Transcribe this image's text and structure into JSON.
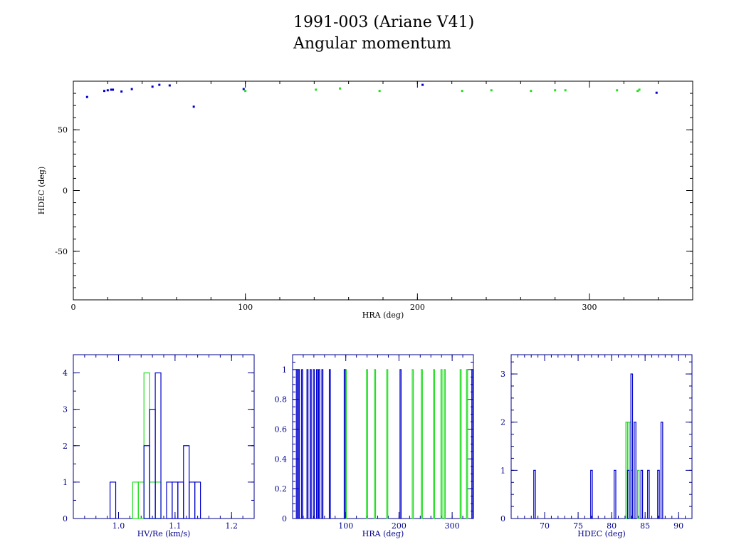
{
  "header": {
    "title": "1991-003 (Ariane V41)",
    "subtitle": "Angular momentum"
  },
  "colors": {
    "axis_top": "#000000",
    "axis_bottom": "#00008b",
    "series_blue": "#0000cc",
    "series_green": "#22dd22",
    "background": "#ffffff"
  },
  "chart_data": [
    {
      "type": "scatter",
      "xlabel": "HRA (deg)",
      "ylabel": "HDEC (deg)",
      "xlim": [
        0,
        360
      ],
      "ylim": [
        -90,
        90
      ],
      "xticks": [
        0,
        100,
        200,
        300
      ],
      "yticks": [
        -50,
        0,
        50
      ],
      "grid": false,
      "legend": "none",
      "series": [
        {
          "color": "blue",
          "points": [
            [
              8,
              77
            ],
            [
              18,
              82
            ],
            [
              20,
              82.5
            ],
            [
              22,
              83
            ],
            [
              23,
              83
            ],
            [
              28,
              81.5
            ],
            [
              34,
              83.5
            ],
            [
              46,
              85.5
            ],
            [
              50,
              87
            ],
            [
              56,
              86.5
            ],
            [
              70,
              69
            ],
            [
              99,
              83.5
            ],
            [
              203,
              87
            ],
            [
              339,
              80.5
            ]
          ]
        },
        {
          "color": "green",
          "points": [
            [
              100,
              82
            ],
            [
              141,
              83
            ],
            [
              155,
              84
            ],
            [
              178,
              82
            ],
            [
              226,
              82
            ],
            [
              243,
              82.5
            ],
            [
              266,
              82
            ],
            [
              280,
              82.5
            ],
            [
              286,
              82.5
            ],
            [
              316,
              82.5
            ],
            [
              328,
              82
            ],
            [
              329,
              83
            ]
          ]
        }
      ]
    },
    {
      "type": "histogram",
      "xlabel": "HV/Re (km/s)",
      "ylabel": "",
      "xlim": [
        0.92,
        1.24
      ],
      "ylim": [
        0,
        4.5
      ],
      "xticks": [
        "1.0",
        "1.1",
        "1.2"
      ],
      "yticks": [
        "0",
        "1",
        "2",
        "3",
        "4"
      ],
      "bin_width": 0.01,
      "series": [
        {
          "color": "blue",
          "bins": [
            [
              0.99,
              1
            ],
            [
              1.05,
              2
            ],
            [
              1.06,
              3
            ],
            [
              1.07,
              4
            ],
            [
              1.09,
              1
            ],
            [
              1.1,
              1
            ],
            [
              1.11,
              1
            ],
            [
              1.12,
              2
            ],
            [
              1.13,
              1
            ],
            [
              1.14,
              1
            ]
          ]
        },
        {
          "color": "green",
          "bins": [
            [
              1.03,
              1
            ],
            [
              1.04,
              1
            ],
            [
              1.05,
              4
            ],
            [
              1.06,
              1
            ],
            [
              1.07,
              1
            ]
          ]
        }
      ]
    },
    {
      "type": "histogram",
      "xlabel": "HRA (deg)",
      "ylabel": "",
      "xlim": [
        0,
        340
      ],
      "ylim": [
        0,
        1.1
      ],
      "xticks": [
        "100",
        "200",
        "300"
      ],
      "yticks": [
        "0",
        "0.2",
        "0.4",
        "0.6",
        "0.8",
        "1"
      ],
      "bin_width": 2,
      "series": [
        {
          "color": "blue",
          "bins": [
            [
              8,
              1
            ],
            [
              12,
              1
            ],
            [
              18,
              1
            ],
            [
              28,
              1
            ],
            [
              34,
              1
            ],
            [
              40,
              1
            ],
            [
              46,
              1
            ],
            [
              50,
              1
            ],
            [
              56,
              1
            ],
            [
              70,
              1
            ],
            [
              98,
              1
            ],
            [
              203,
              1
            ],
            [
              338,
              1
            ]
          ]
        },
        {
          "color": "green",
          "bins": [
            [
              100,
              1
            ],
            [
              140,
              1
            ],
            [
              155,
              1
            ],
            [
              178,
              1
            ],
            [
              226,
              1
            ],
            [
              243,
              1
            ],
            [
              266,
              1
            ],
            [
              280,
              1
            ],
            [
              286,
              1
            ],
            [
              316,
              1
            ],
            [
              328,
              1
            ]
          ]
        }
      ]
    },
    {
      "type": "histogram",
      "xlabel": "HDEC (deg)",
      "ylabel": "",
      "xlim": [
        65,
        92
      ],
      "ylim": [
        0,
        3.4
      ],
      "xticks": [
        "70",
        "75",
        "80",
        "85",
        "90"
      ],
      "yticks": [
        "0",
        "1",
        "2",
        "3"
      ],
      "bin_width": 0.25,
      "series": [
        {
          "color": "blue",
          "bins": [
            [
              68.5,
              1
            ],
            [
              77,
              1
            ],
            [
              80.5,
              1
            ],
            [
              82.5,
              1
            ],
            [
              83,
              3
            ],
            [
              83.5,
              2
            ],
            [
              84.5,
              1
            ],
            [
              85.5,
              1
            ],
            [
              87,
              1
            ],
            [
              87.5,
              2
            ]
          ]
        },
        {
          "color": "green",
          "bins": [
            [
              82.25,
              2
            ],
            [
              82.5,
              2
            ],
            [
              82.75,
              2
            ],
            [
              83,
              1
            ],
            [
              84,
              1
            ]
          ]
        }
      ]
    }
  ]
}
